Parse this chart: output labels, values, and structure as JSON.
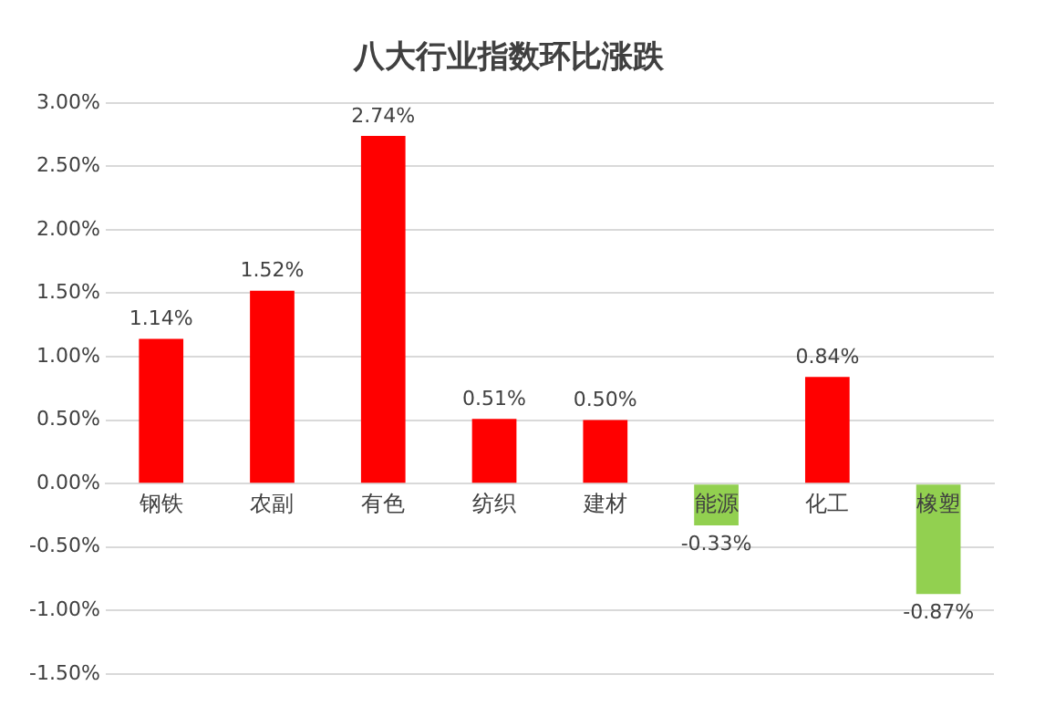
{
  "chart_data": {
    "type": "bar",
    "title": "八大行业指数环比涨跌",
    "categories": [
      "钢铁",
      "农副",
      "有色",
      "纺织",
      "建材",
      "能源",
      "化工",
      "橡塑"
    ],
    "values": [
      1.14,
      1.52,
      2.74,
      0.51,
      0.5,
      -0.33,
      0.84,
      -0.87
    ],
    "colors": [
      "#ff0000",
      "#ff0000",
      "#ff0000",
      "#ff0000",
      "#ff0000",
      "#92d050",
      "#ff0000",
      "#92d050"
    ],
    "value_labels": [
      "1.14%",
      "1.52%",
      "2.74%",
      "0.51%",
      "0.50%",
      "-0.33%",
      "0.84%",
      "-0.87%"
    ],
    "ylim": [
      -1.5,
      3.0
    ],
    "yticks": [
      {
        "value": -1.5,
        "label": "-1.50%"
      },
      {
        "value": -1.0,
        "label": "-1.00%"
      },
      {
        "value": -0.5,
        "label": "-0.50%"
      },
      {
        "value": 0,
        "label": "0.00%"
      },
      {
        "value": 0.5,
        "label": "0.50%"
      },
      {
        "value": 1.0,
        "label": "1.00%"
      },
      {
        "value": 1.5,
        "label": "1.50%"
      },
      {
        "value": 2.0,
        "label": "2.00%"
      },
      {
        "value": 2.5,
        "label": "2.50%"
      },
      {
        "value": 3.0,
        "label": "3.00%"
      }
    ],
    "grid": "y"
  }
}
